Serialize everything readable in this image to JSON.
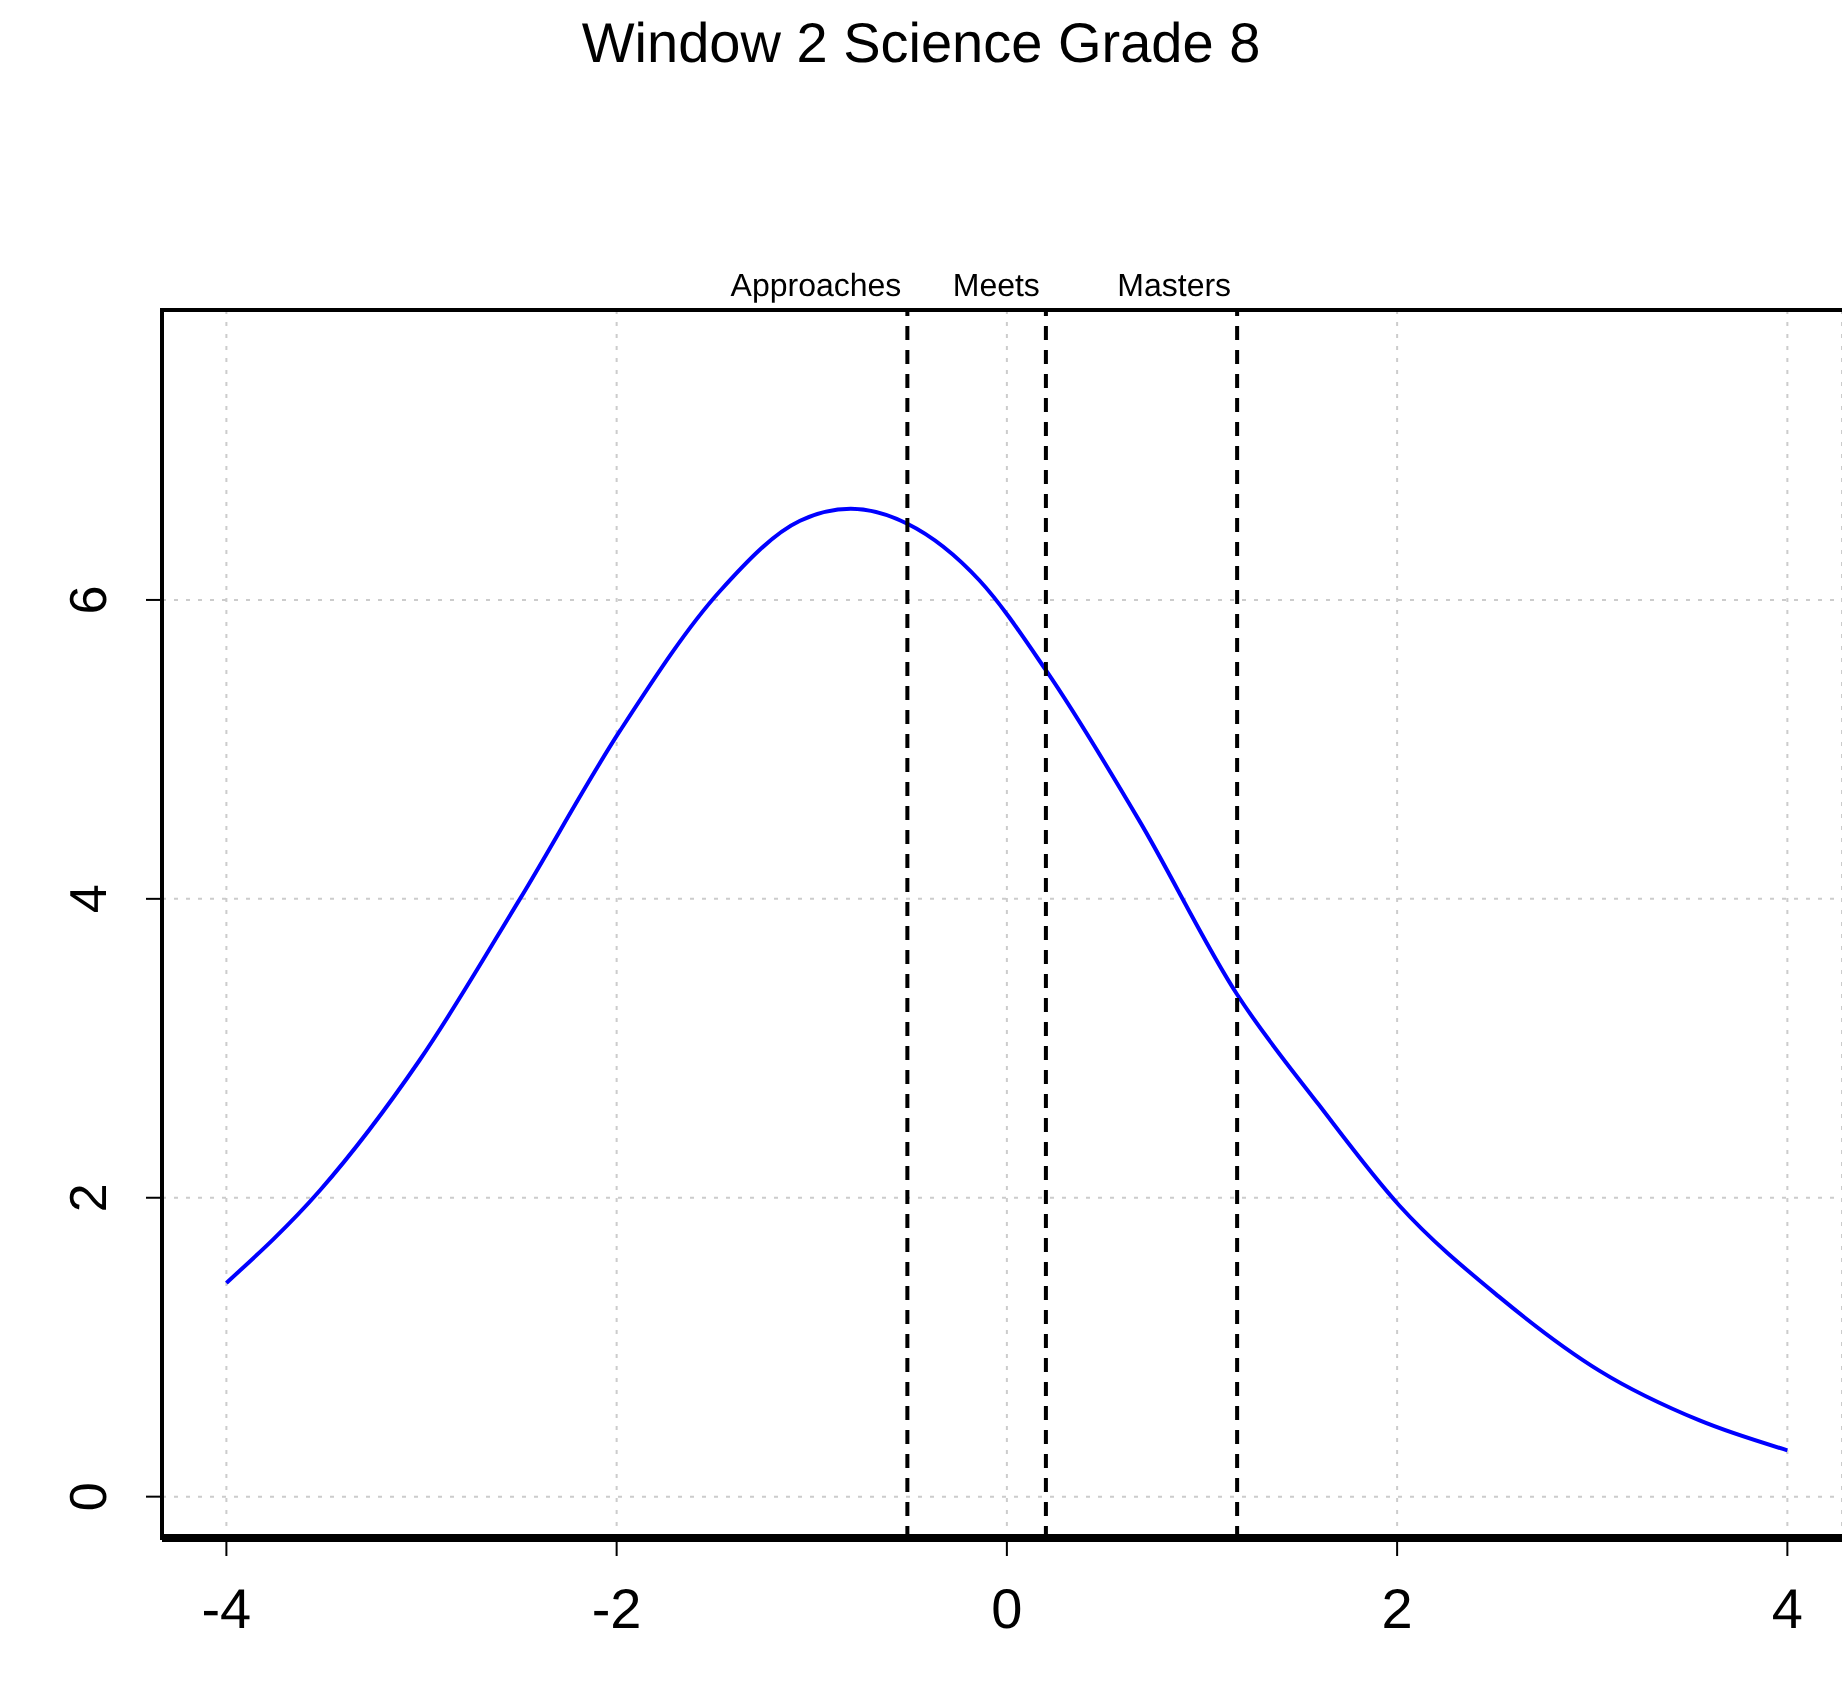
{
  "chart_data": {
    "type": "line",
    "title": "Window 2 Science Grade 8",
    "xlim": [
      -4.33,
      4.28
    ],
    "xticks": [
      -4,
      -2,
      0,
      2,
      4
    ],
    "ylim": [
      -0.29,
      7.94
    ],
    "yticks": [
      0,
      2,
      4,
      6
    ],
    "grid": true,
    "marker": "none",
    "series": [
      {
        "color": "#0000ff",
        "x": [
          -4,
          -3.52,
          -3.01,
          -2.5,
          -1.98,
          -1.47,
          -1.06,
          -0.8,
          -0.51,
          -0.14,
          0.2,
          0.68,
          1.18,
          1.6,
          2.01,
          2.52,
          3.04,
          3.55,
          4
        ],
        "values": [
          1.43,
          2.05,
          2.92,
          3.99,
          5.13,
          6.06,
          6.53,
          6.61,
          6.51,
          6.13,
          5.53,
          4.52,
          3.36,
          2.62,
          1.95,
          1.34,
          0.84,
          0.51,
          0.31
        ]
      }
    ],
    "ref_lines": [
      {
        "axis": "x",
        "value": -0.51,
        "label": "Approaches",
        "color": "#000000",
        "line_style": "dashed"
      },
      {
        "axis": "x",
        "value": 0.2,
        "label": "Meets",
        "color": "#000000",
        "line_style": "dashed"
      },
      {
        "axis": "x",
        "value": 1.18,
        "label": "Masters",
        "color": "#000000",
        "line_style": "dashed"
      }
    ]
  }
}
